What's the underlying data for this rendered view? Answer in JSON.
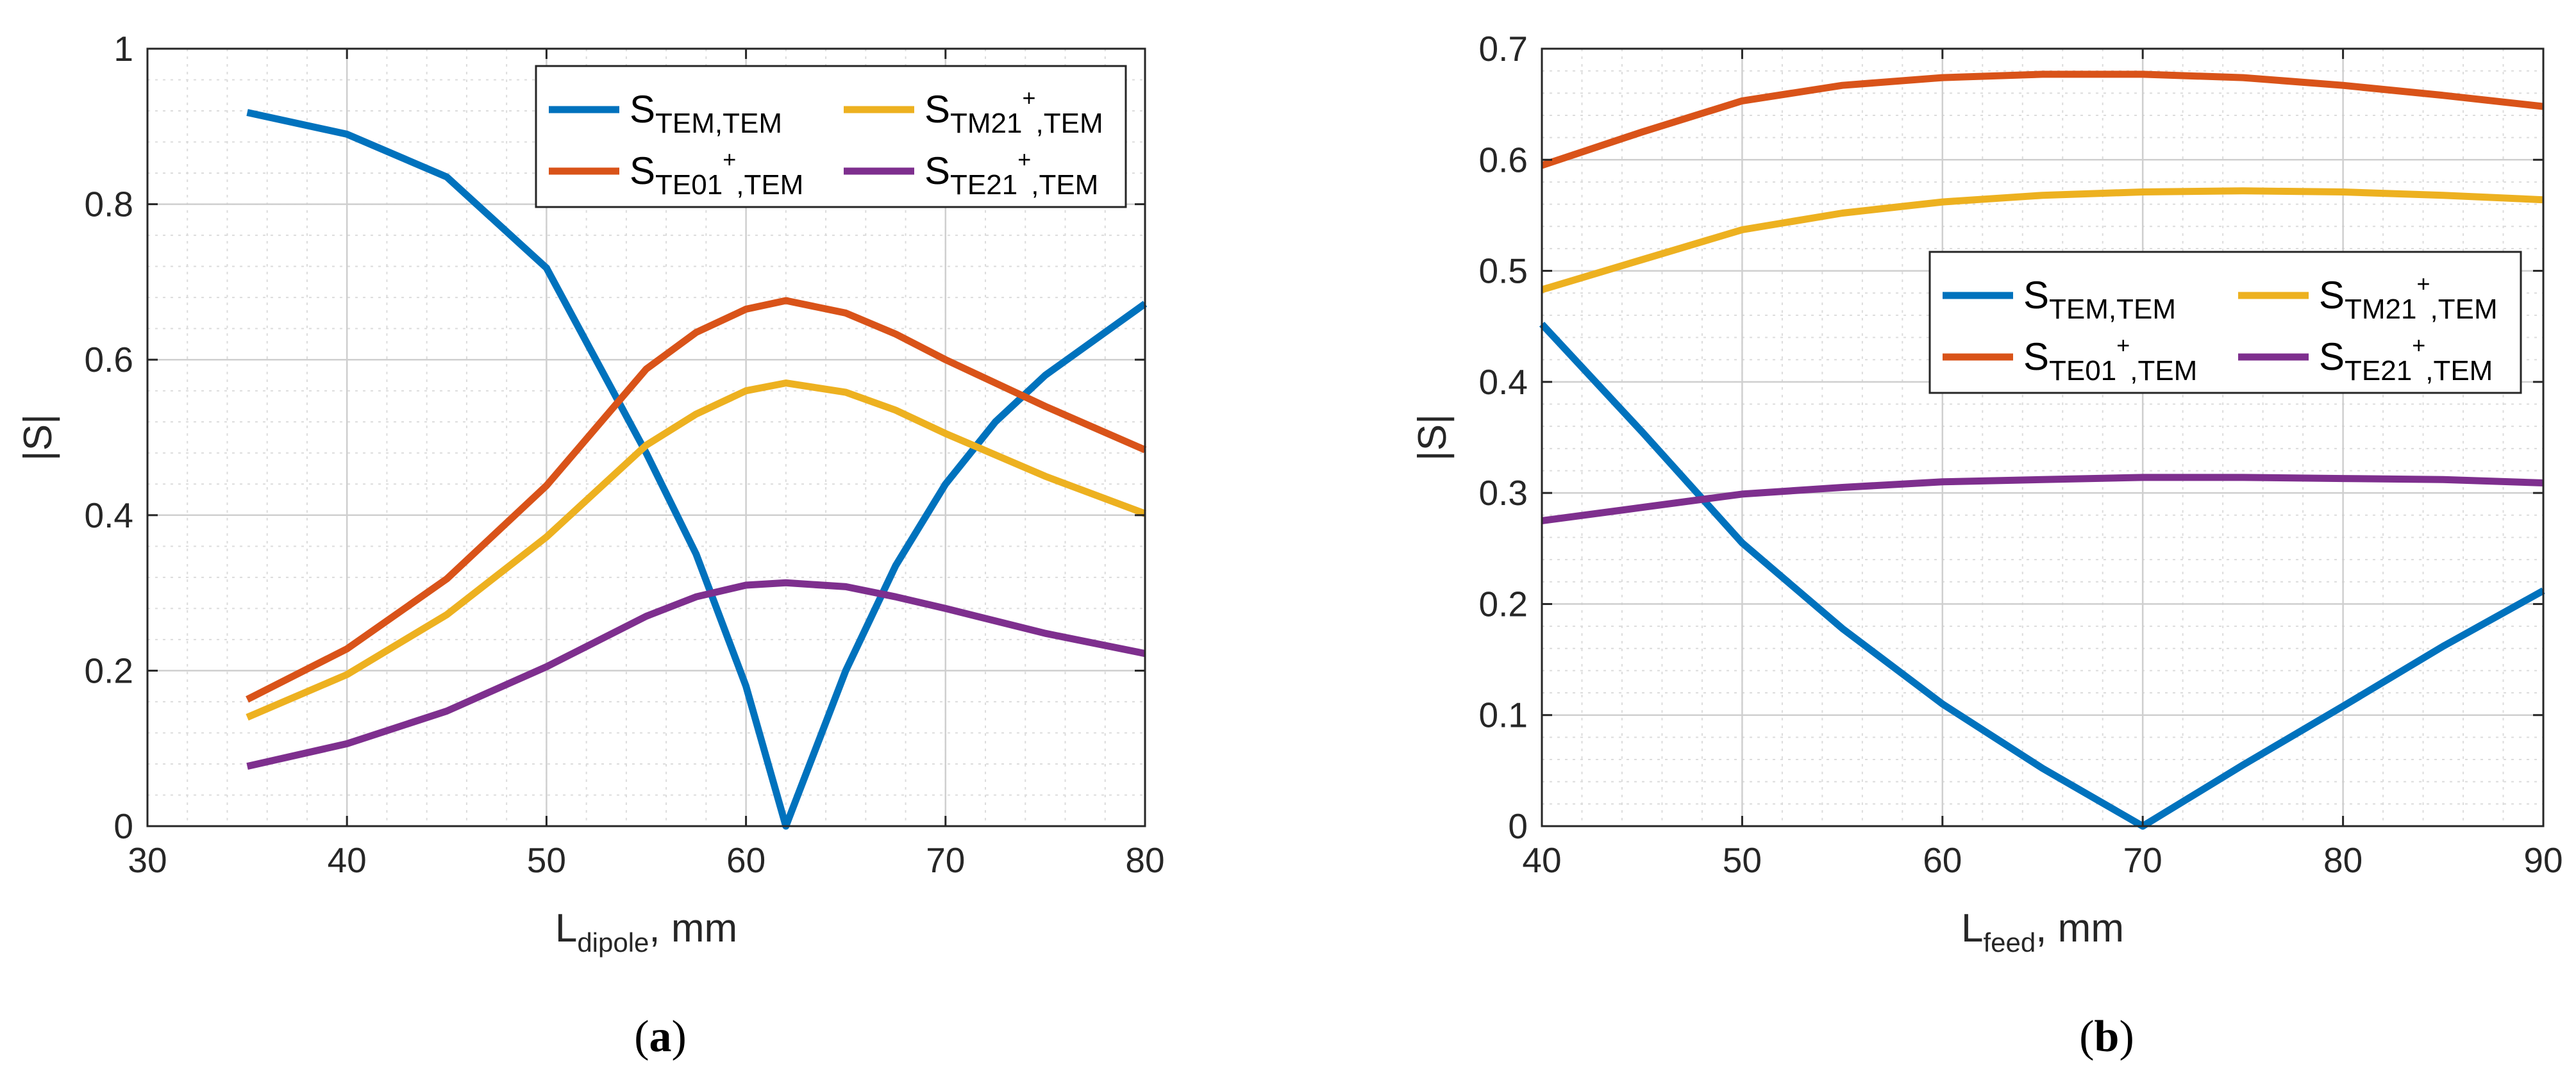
{
  "chart_data": [
    {
      "type": "line",
      "panel": "a",
      "caption": "(a)",
      "xlabel": {
        "main": "L",
        "sub": "dipole",
        "suffix": ", mm"
      },
      "ylabel": "|S|",
      "xlim": [
        30,
        80
      ],
      "ylim": [
        0,
        1
      ],
      "xticks": [
        30,
        40,
        50,
        60,
        70,
        80
      ],
      "yticks": [
        0,
        0.2,
        0.4,
        0.6,
        0.8,
        1
      ],
      "ytick_labels": [
        "0",
        "0.2",
        "0.4",
        "0.6",
        "0.8",
        "1"
      ],
      "legend": "top-right",
      "grid": true,
      "series": [
        {
          "name": "S_TEM,TEM",
          "main": "S",
          "sub": "TEM,TEM",
          "sup": "",
          "subtail": "",
          "color": "#0072BD",
          "x": [
            35,
            40,
            45,
            50,
            55,
            57.5,
            60,
            62,
            65,
            67.5,
            70,
            72.5,
            75,
            80
          ],
          "y": [
            0.918,
            0.89,
            0.835,
            0.718,
            0.48,
            0.35,
            0.18,
            0.0,
            0.2,
            0.335,
            0.44,
            0.52,
            0.58,
            0.672
          ]
        },
        {
          "name": "S_TE01+,TEM",
          "main": "S",
          "sub": "TE01",
          "sup": "+",
          "subtail": ",TEM",
          "color": "#D95319",
          "x": [
            35,
            40,
            45,
            50,
            55,
            57.5,
            60,
            62,
            65,
            67.5,
            70,
            75,
            80
          ],
          "y": [
            0.163,
            0.228,
            0.318,
            0.438,
            0.588,
            0.635,
            0.665,
            0.676,
            0.66,
            0.633,
            0.6,
            0.54,
            0.484
          ]
        },
        {
          "name": "S_TM21+,TEM",
          "main": "S",
          "sub": "TM21",
          "sup": "+",
          "subtail": ",TEM",
          "color": "#EDB120",
          "x": [
            35,
            40,
            45,
            50,
            55,
            57.5,
            60,
            62,
            65,
            67.5,
            70,
            75,
            80
          ],
          "y": [
            0.14,
            0.195,
            0.272,
            0.372,
            0.49,
            0.53,
            0.56,
            0.57,
            0.558,
            0.535,
            0.505,
            0.45,
            0.402
          ]
        },
        {
          "name": "S_TE21+,TEM",
          "main": "S",
          "sub": "TE21",
          "sup": "+",
          "subtail": ",TEM",
          "color": "#7E2F8E",
          "x": [
            35,
            40,
            45,
            50,
            55,
            57.5,
            60,
            62,
            65,
            67.5,
            70,
            75,
            80
          ],
          "y": [
            0.077,
            0.106,
            0.148,
            0.205,
            0.27,
            0.295,
            0.31,
            0.313,
            0.308,
            0.295,
            0.28,
            0.248,
            0.222
          ]
        }
      ]
    },
    {
      "type": "line",
      "panel": "b",
      "caption": "(b)",
      "xlabel": {
        "main": "L",
        "sub": "feed",
        "suffix": ", mm"
      },
      "ylabel": "|S|",
      "xlim": [
        40,
        90
      ],
      "ylim": [
        0,
        0.7
      ],
      "xticks": [
        40,
        50,
        60,
        70,
        80,
        90
      ],
      "yticks": [
        0,
        0.1,
        0.2,
        0.3,
        0.4,
        0.5,
        0.6,
        0.7
      ],
      "ytick_labels": [
        "0",
        "0.1",
        "0.2",
        "0.3",
        "0.4",
        "0.5",
        "0.6",
        "0.7"
      ],
      "legend": "center-right",
      "grid": true,
      "series": [
        {
          "name": "S_TEM,TEM",
          "main": "S",
          "sub": "TEM,TEM",
          "sup": "",
          "subtail": "",
          "color": "#0072BD",
          "x": [
            40,
            45,
            50,
            55,
            60,
            65,
            70,
            75,
            80,
            85,
            90
          ],
          "y": [
            0.452,
            0.355,
            0.255,
            0.178,
            0.11,
            0.052,
            0.0,
            0.055,
            0.108,
            0.162,
            0.212
          ]
        },
        {
          "name": "S_TE01+,TEM",
          "main": "S",
          "sub": "TE01",
          "sup": "+",
          "subtail": ",TEM",
          "color": "#D95319",
          "x": [
            40,
            45,
            50,
            55,
            60,
            65,
            70,
            75,
            80,
            85,
            90
          ],
          "y": [
            0.595,
            0.625,
            0.653,
            0.667,
            0.674,
            0.677,
            0.677,
            0.674,
            0.667,
            0.658,
            0.648
          ]
        },
        {
          "name": "S_TM21+,TEM",
          "main": "S",
          "sub": "TM21",
          "sup": "+",
          "subtail": ",TEM",
          "color": "#EDB120",
          "x": [
            40,
            45,
            50,
            55,
            60,
            65,
            70,
            75,
            80,
            85,
            90
          ],
          "y": [
            0.483,
            0.51,
            0.537,
            0.552,
            0.562,
            0.568,
            0.571,
            0.572,
            0.571,
            0.568,
            0.564
          ]
        },
        {
          "name": "S_TE21+,TEM",
          "main": "S",
          "sub": "TE21",
          "sup": "+",
          "subtail": ",TEM",
          "color": "#7E2F8E",
          "x": [
            40,
            45,
            50,
            55,
            60,
            65,
            70,
            75,
            80,
            85,
            90
          ],
          "y": [
            0.275,
            0.287,
            0.299,
            0.305,
            0.31,
            0.312,
            0.314,
            0.314,
            0.313,
            0.312,
            0.309
          ]
        }
      ]
    }
  ]
}
